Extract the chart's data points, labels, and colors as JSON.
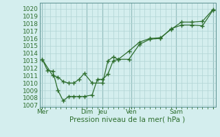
{
  "xlabel": "Pression niveau de la mer( hPa )",
  "bg_color": "#d4eeee",
  "grid_color": "#b0d4d4",
  "line_color": "#2d6e2d",
  "dark_vline_color": "#5a9090",
  "ylim": [
    1006.8,
    1020.8
  ],
  "yticks": [
    1007,
    1008,
    1009,
    1010,
    1011,
    1012,
    1013,
    1014,
    1015,
    1016,
    1017,
    1018,
    1019,
    1020
  ],
  "xlim": [
    0,
    33.5
  ],
  "day_tick_positions": [
    0.5,
    9,
    12,
    17.5,
    26,
    33
  ],
  "day_labels": [
    "Mer",
    "Dim",
    "Jeu",
    "Ven",
    "Sam",
    ""
  ],
  "vline_positions": [
    0.5,
    9,
    12,
    17.5,
    26,
    33
  ],
  "s1_x": [
    0.5,
    1.5,
    2.5,
    3.5,
    4.5,
    5.5,
    6.5,
    7.5,
    8.5,
    10,
    11,
    12,
    13,
    14,
    15,
    17,
    19,
    21,
    23,
    25,
    27,
    29,
    31,
    33
  ],
  "s1_y": [
    1013.2,
    1011.7,
    1011.6,
    1009.0,
    1007.6,
    1008.2,
    1008.2,
    1008.2,
    1008.2,
    1008.4,
    1010.5,
    1010.5,
    1011.2,
    1013.0,
    1013.2,
    1013.2,
    1015.2,
    1015.9,
    1016.0,
    1017.3,
    1017.8,
    1017.8,
    1017.7,
    1019.8
  ],
  "s2_x": [
    0.5,
    2.5,
    3.5,
    4.5,
    5.5,
    6.5,
    7.5,
    8.5,
    10,
    12,
    13,
    14,
    15,
    17,
    19,
    21,
    23,
    25,
    27,
    29,
    31,
    33
  ],
  "s2_y": [
    1013.2,
    1011.0,
    1010.8,
    1010.2,
    1010.0,
    1010.0,
    1010.5,
    1011.3,
    1010.0,
    1010.0,
    1013.0,
    1013.5,
    1013.2,
    1014.3,
    1015.5,
    1016.0,
    1016.1,
    1017.2,
    1018.2,
    1018.2,
    1018.3,
    1019.9
  ]
}
